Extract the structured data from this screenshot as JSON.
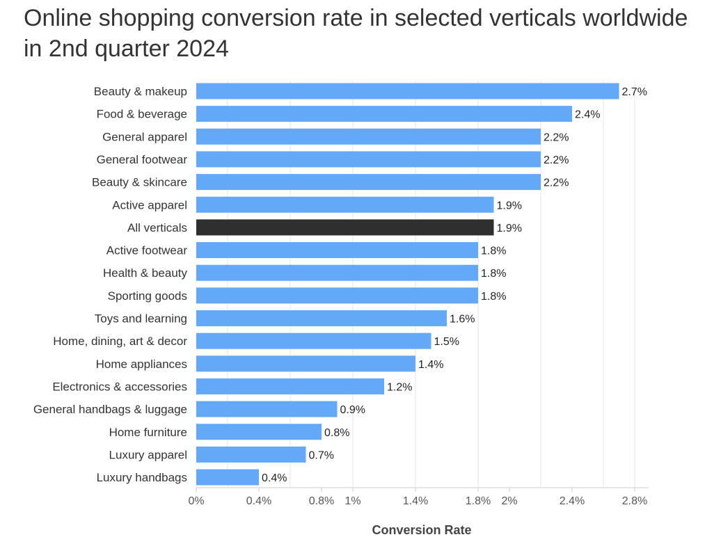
{
  "chart_data": {
    "type": "bar",
    "orientation": "horizontal",
    "title": "Online shopping conversion rate in selected verticals worldwide in 2nd quarter 2024",
    "xlabel": "Conversion Rate",
    "ylabel": "",
    "xlim": [
      0,
      2.9
    ],
    "ticks": [
      {
        "value": 0,
        "label": "0%"
      },
      {
        "value": 0.4,
        "label": "0.4%"
      },
      {
        "value": 0.8,
        "label": "0.8%"
      },
      {
        "value": 1.0,
        "label": "1%"
      },
      {
        "value": 1.4,
        "label": "1.4%"
      },
      {
        "value": 1.8,
        "label": "1.8%"
      },
      {
        "value": 2.0,
        "label": "2%"
      },
      {
        "value": 2.4,
        "label": "2.4%"
      },
      {
        "value": 2.8,
        "label": "2.8%"
      }
    ],
    "gridlines": [
      0.2,
      0.6,
      1.0,
      1.4,
      1.8,
      2.2,
      2.6,
      2.8
    ],
    "categories": [
      "Beauty & makeup",
      "Food & beverage",
      "General apparel",
      "General footwear",
      "Beauty & skincare",
      "Active apparel",
      "All verticals",
      "Active footwear",
      "Health & beauty",
      "Sporting goods",
      "Toys and learning",
      "Home, dining, art & decor",
      "Home appliances",
      "Electronics & accessories",
      "General handbags & luggage",
      "Home furniture",
      "Luxury apparel",
      "Luxury handbags"
    ],
    "values": [
      2.7,
      2.4,
      2.2,
      2.2,
      2.2,
      1.9,
      1.9,
      1.8,
      1.8,
      1.8,
      1.6,
      1.5,
      1.4,
      1.2,
      0.9,
      0.8,
      0.7,
      0.4
    ],
    "value_labels": [
      "2.7%",
      "2.4%",
      "2.2%",
      "2.2%",
      "2.2%",
      "1.9%",
      "1.9%",
      "1.8%",
      "1.8%",
      "1.8%",
      "1.6%",
      "1.5%",
      "1.4%",
      "1.2%",
      "0.9%",
      "0.8%",
      "0.7%",
      "0.4%"
    ],
    "highlight_category": "All verticals",
    "colors": {
      "bar": "#64a9f8",
      "highlight": "#2f2f2f",
      "grid": "#e6e6e6",
      "axis": "#cccccc"
    }
  }
}
